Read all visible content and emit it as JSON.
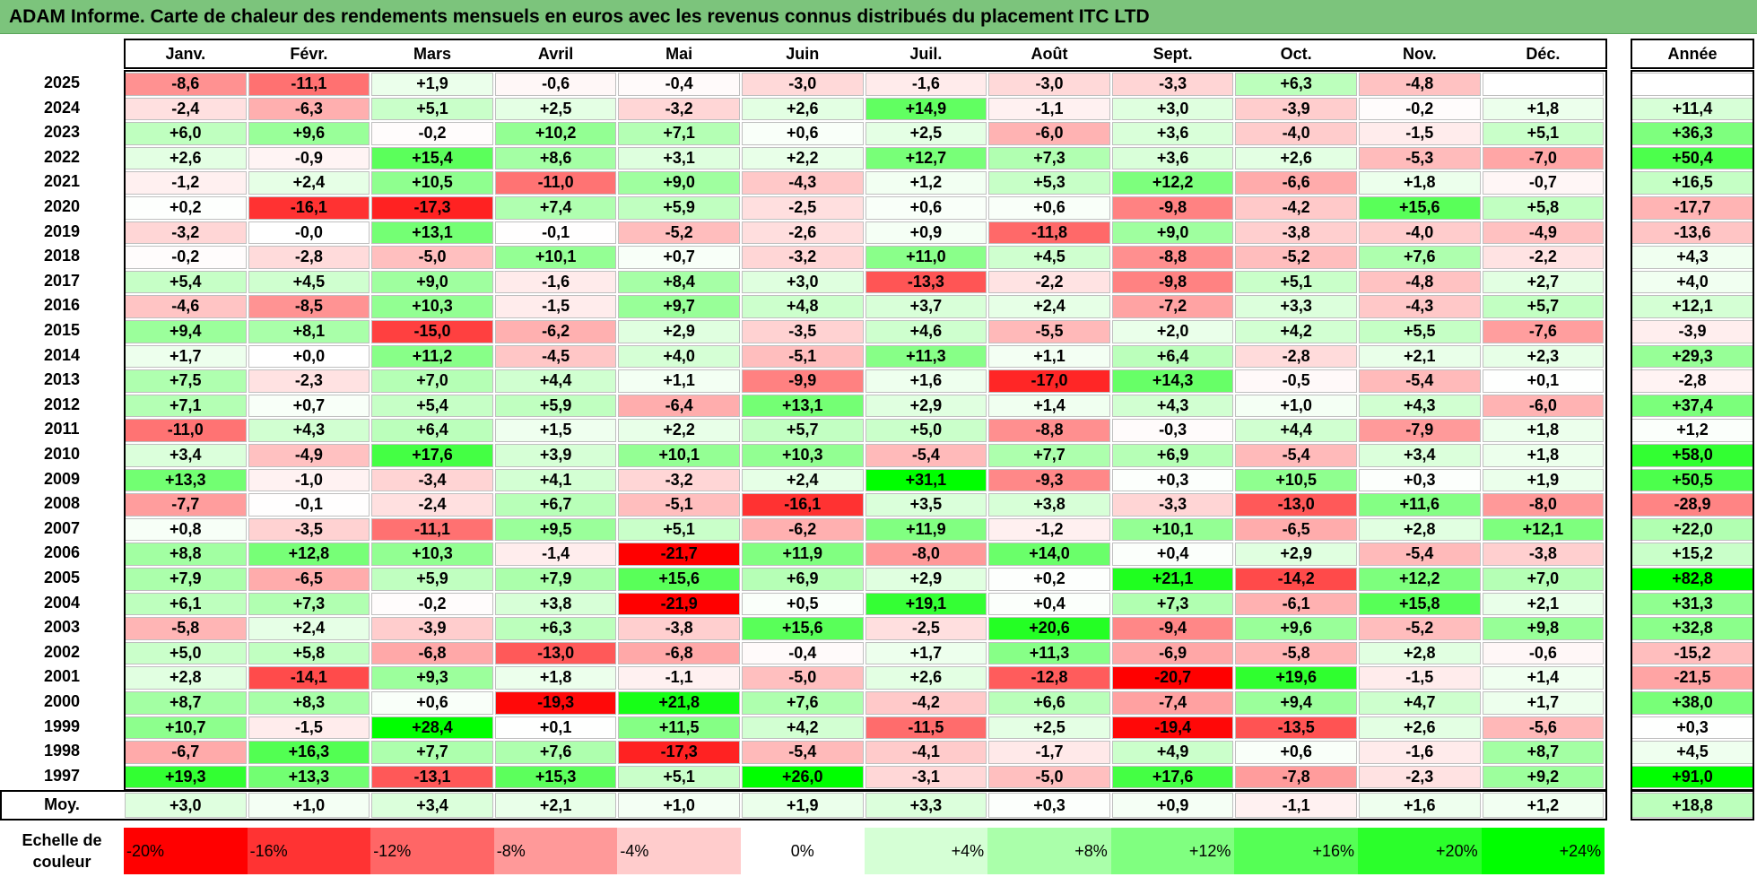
{
  "chart_data": {
    "type": "heatmap",
    "title": "ADAM Informe. Carte de chaleur des rendements mensuels en euros avec les revenus connus distribués du placement ITC LTD",
    "columns": [
      "Janv.",
      "Févr.",
      "Mars",
      "Avril",
      "Mai",
      "Juin",
      "Juil.",
      "Août",
      "Sept.",
      "Oct.",
      "Nov.",
      "Déc."
    ],
    "year_column_label": "Année",
    "rows": [
      {
        "year": "2025",
        "values": [
          "-8,6",
          "-11,1",
          "+1,9",
          "-0,6",
          "-0,4",
          "-3,0",
          "-1,6",
          "-3,0",
          "-3,3",
          "+6,3",
          "-4,8",
          ""
        ],
        "annual": ""
      },
      {
        "year": "2024",
        "values": [
          "-2,4",
          "-6,3",
          "+5,1",
          "+2,5",
          "-3,2",
          "+2,6",
          "+14,9",
          "-1,1",
          "+3,0",
          "-3,9",
          "-0,2",
          "+1,8"
        ],
        "annual": "+11,4"
      },
      {
        "year": "2023",
        "values": [
          "+6,0",
          "+9,6",
          "-0,2",
          "+10,2",
          "+7,1",
          "+0,6",
          "+2,5",
          "-6,0",
          "+3,6",
          "-4,0",
          "-1,5",
          "+5,1"
        ],
        "annual": "+36,3"
      },
      {
        "year": "2022",
        "values": [
          "+2,6",
          "-0,9",
          "+15,4",
          "+8,6",
          "+3,1",
          "+2,2",
          "+12,7",
          "+7,3",
          "+3,6",
          "+2,6",
          "-5,3",
          "-7,0"
        ],
        "annual": "+50,4"
      },
      {
        "year": "2021",
        "values": [
          "-1,2",
          "+2,4",
          "+10,5",
          "-11,0",
          "+9,0",
          "-4,3",
          "+1,2",
          "+5,3",
          "+12,2",
          "-6,6",
          "+1,8",
          "-0,7"
        ],
        "annual": "+16,5"
      },
      {
        "year": "2020",
        "values": [
          "+0,2",
          "-16,1",
          "-17,3",
          "+7,4",
          "+5,9",
          "-2,5",
          "+0,6",
          "+0,6",
          "-9,8",
          "-4,2",
          "+15,6",
          "+5,8"
        ],
        "annual": "-17,7"
      },
      {
        "year": "2019",
        "values": [
          "-3,2",
          "-0,0",
          "+13,1",
          "-0,1",
          "-5,2",
          "-2,6",
          "+0,9",
          "-11,8",
          "+9,0",
          "-3,8",
          "-4,0",
          "-4,9"
        ],
        "annual": "-13,6"
      },
      {
        "year": "2018",
        "values": [
          "-0,2",
          "-2,8",
          "-5,0",
          "+10,1",
          "+0,7",
          "-3,2",
          "+11,0",
          "+4,5",
          "-8,8",
          "-5,2",
          "+7,6",
          "-2,2"
        ],
        "annual": "+4,3"
      },
      {
        "year": "2017",
        "values": [
          "+5,4",
          "+4,5",
          "+9,0",
          "-1,6",
          "+8,4",
          "+3,0",
          "-13,3",
          "-2,2",
          "-9,8",
          "+5,1",
          "-4,8",
          "+2,7"
        ],
        "annual": "+4,0"
      },
      {
        "year": "2016",
        "values": [
          "-4,6",
          "-8,5",
          "+10,3",
          "-1,5",
          "+9,7",
          "+4,8",
          "+3,7",
          "+2,4",
          "-7,2",
          "+3,3",
          "-4,3",
          "+5,7"
        ],
        "annual": "+12,1"
      },
      {
        "year": "2015",
        "values": [
          "+9,4",
          "+8,1",
          "-15,0",
          "-6,2",
          "+2,9",
          "-3,5",
          "+4,6",
          "-5,5",
          "+2,0",
          "+4,2",
          "+5,5",
          "-7,6"
        ],
        "annual": "-3,9"
      },
      {
        "year": "2014",
        "values": [
          "+1,7",
          "+0,0",
          "+11,2",
          "-4,5",
          "+4,0",
          "-5,1",
          "+11,3",
          "+1,1",
          "+6,4",
          "-2,8",
          "+2,1",
          "+2,3"
        ],
        "annual": "+29,3"
      },
      {
        "year": "2013",
        "values": [
          "+7,5",
          "-2,3",
          "+7,0",
          "+4,4",
          "+1,1",
          "-9,9",
          "+1,6",
          "-17,0",
          "+14,3",
          "-0,5",
          "-5,4",
          "+0,1"
        ],
        "annual": "-2,8"
      },
      {
        "year": "2012",
        "values": [
          "+7,1",
          "+0,7",
          "+5,4",
          "+5,9",
          "-6,4",
          "+13,1",
          "+2,9",
          "+1,4",
          "+4,3",
          "+1,0",
          "+4,3",
          "-6,0"
        ],
        "annual": "+37,4"
      },
      {
        "year": "2011",
        "values": [
          "-11,0",
          "+4,3",
          "+6,4",
          "+1,5",
          "+2,2",
          "+5,7",
          "+5,0",
          "-8,8",
          "-0,3",
          "+4,4",
          "-7,9",
          "+1,8"
        ],
        "annual": "+1,2"
      },
      {
        "year": "2010",
        "values": [
          "+3,4",
          "-4,9",
          "+17,6",
          "+3,9",
          "+10,1",
          "+10,3",
          "-5,4",
          "+7,7",
          "+6,9",
          "-5,4",
          "+3,4",
          "+1,8"
        ],
        "annual": "+58,0"
      },
      {
        "year": "2009",
        "values": [
          "+13,3",
          "-1,0",
          "-3,4",
          "+4,1",
          "-3,2",
          "+2,4",
          "+31,1",
          "-9,3",
          "+0,3",
          "+10,5",
          "+0,3",
          "+1,9"
        ],
        "annual": "+50,5"
      },
      {
        "year": "2008",
        "values": [
          "-7,7",
          "-0,1",
          "-2,4",
          "+6,7",
          "-5,1",
          "-16,1",
          "+3,5",
          "+3,8",
          "-3,3",
          "-13,0",
          "+11,6",
          "-8,0"
        ],
        "annual": "-28,9"
      },
      {
        "year": "2007",
        "values": [
          "+0,8",
          "-3,5",
          "-11,1",
          "+9,5",
          "+5,1",
          "-6,2",
          "+11,9",
          "-1,2",
          "+10,1",
          "-6,5",
          "+2,8",
          "+12,1"
        ],
        "annual": "+22,0"
      },
      {
        "year": "2006",
        "values": [
          "+8,8",
          "+12,8",
          "+10,3",
          "-1,4",
          "-21,7",
          "+11,9",
          "-8,0",
          "+14,0",
          "+0,4",
          "+2,9",
          "-5,4",
          "-3,8"
        ],
        "annual": "+15,2"
      },
      {
        "year": "2005",
        "values": [
          "+7,9",
          "-6,5",
          "+5,9",
          "+7,9",
          "+15,6",
          "+6,9",
          "+2,9",
          "+0,2",
          "+21,1",
          "-14,2",
          "+12,2",
          "+7,0"
        ],
        "annual": "+82,8"
      },
      {
        "year": "2004",
        "values": [
          "+6,1",
          "+7,3",
          "-0,2",
          "+3,8",
          "-21,9",
          "+0,5",
          "+19,1",
          "+0,4",
          "+7,3",
          "-6,1",
          "+15,8",
          "+2,1"
        ],
        "annual": "+31,3"
      },
      {
        "year": "2003",
        "values": [
          "-5,8",
          "+2,4",
          "-3,9",
          "+6,3",
          "-3,8",
          "+15,6",
          "-2,5",
          "+20,6",
          "-9,4",
          "+9,6",
          "-5,2",
          "+9,8"
        ],
        "annual": "+32,8"
      },
      {
        "year": "2002",
        "values": [
          "+5,0",
          "+5,8",
          "-6,8",
          "-13,0",
          "-6,8",
          "-0,4",
          "+1,7",
          "+11,3",
          "-6,9",
          "-5,8",
          "+2,8",
          "-0,6"
        ],
        "annual": "-15,2"
      },
      {
        "year": "2001",
        "values": [
          "+2,8",
          "-14,1",
          "+9,3",
          "+1,8",
          "-1,1",
          "-5,0",
          "+2,6",
          "-12,8",
          "-20,7",
          "+19,6",
          "-1,5",
          "+1,4"
        ],
        "annual": "-21,5"
      },
      {
        "year": "2000",
        "values": [
          "+8,7",
          "+8,3",
          "+0,6",
          "-19,3",
          "+21,8",
          "+7,6",
          "-4,2",
          "+6,6",
          "-7,4",
          "+9,4",
          "+4,7",
          "+1,7"
        ],
        "annual": "+38,0"
      },
      {
        "year": "1999",
        "values": [
          "+10,7",
          "-1,5",
          "+28,4",
          "+0,1",
          "+11,5",
          "+4,2",
          "-11,5",
          "+2,5",
          "-19,4",
          "-13,5",
          "+2,6",
          "-5,6"
        ],
        "annual": "+0,3"
      },
      {
        "year": "1998",
        "values": [
          "-6,7",
          "+16,3",
          "+7,7",
          "+7,6",
          "-17,3",
          "-5,4",
          "-4,1",
          "-1,7",
          "+4,9",
          "+0,6",
          "-1,6",
          "+8,7"
        ],
        "annual": "+4,5"
      },
      {
        "year": "1997",
        "values": [
          "+19,3",
          "+13,3",
          "-13,1",
          "+15,3",
          "+5,1",
          "+26,0",
          "-3,1",
          "-5,0",
          "+17,6",
          "-7,8",
          "-2,3",
          "+9,2"
        ],
        "annual": "+91,0"
      }
    ],
    "average": {
      "label": "Moy.",
      "values": [
        "+3,0",
        "+1,0",
        "+3,4",
        "+2,1",
        "+1,0",
        "+1,9",
        "+3,3",
        "+0,3",
        "+0,9",
        "-1,1",
        "+1,6",
        "+1,2"
      ],
      "annual": "+18,8"
    },
    "color_scale": {
      "label": "Echelle de couleur",
      "steps": [
        {
          "label": "-20%",
          "value": -20,
          "color": "#ff0000"
        },
        {
          "label": "-16%",
          "value": -16,
          "color": "#ff3333"
        },
        {
          "label": "-12%",
          "value": -12,
          "color": "#ff6666"
        },
        {
          "label": "-8%",
          "value": -8,
          "color": "#ff9999"
        },
        {
          "label": "-4%",
          "value": -4,
          "color": "#ffcccc"
        },
        {
          "label": "0%",
          "value": 0,
          "color": "#ffffff"
        },
        {
          "label": "+4%",
          "value": 4,
          "color": "#d5ffd5"
        },
        {
          "label": "+8%",
          "value": 8,
          "color": "#aaffaa"
        },
        {
          "label": "+12%",
          "value": 12,
          "color": "#80ff80"
        },
        {
          "label": "+16%",
          "value": 16,
          "color": "#55ff55"
        },
        {
          "label": "+20%",
          "value": 20,
          "color": "#2bff2b"
        },
        {
          "label": "+24%",
          "value": 24,
          "color": "#00ff00"
        }
      ]
    }
  }
}
